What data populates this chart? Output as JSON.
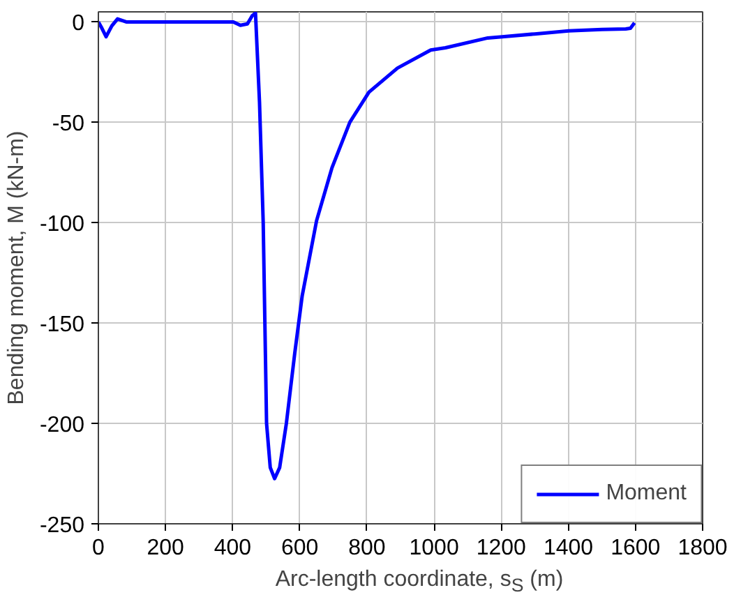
{
  "chart_data": {
    "type": "line",
    "xlabel": "Arc-length coordinate, s$_{S}$ (m)",
    "ylabel": "Bending moment, M (kN-m)",
    "xlim": [
      0,
      1800
    ],
    "xticks": [
      0,
      200,
      400,
      600,
      800,
      1000,
      1200,
      1400,
      1600,
      1800
    ],
    "ylim": [
      -250,
      5
    ],
    "yticks": [
      -250,
      -200,
      -150,
      -100,
      -50,
      0
    ],
    "grid": true,
    "legend": "bottom right",
    "marker": "none",
    "line_style": "solid",
    "series": [
      {
        "name": "Moment",
        "color": "#0000ff",
        "x": [
          0,
          10,
          23,
          40,
          57,
          83,
          200,
          300,
          402,
          423,
          444,
          458,
          468,
          480,
          491,
          501,
          512,
          525,
          540,
          560,
          585,
          607,
          650,
          696,
          749,
          806,
          891,
          990,
          1034,
          1160,
          1203,
          1300,
          1401,
          1500,
          1571,
          1585,
          1597
        ],
        "values": [
          0,
          -3,
          -7.4,
          -2,
          1.5,
          0,
          0,
          0,
          0,
          -1.7,
          -1,
          3,
          4.4,
          -40,
          -100,
          -200,
          -222,
          -227.5,
          -222,
          -200,
          -165,
          -136.6,
          -99,
          -72.6,
          -50,
          -35,
          -23,
          -14,
          -12.9,
          -8,
          -7.4,
          -6,
          -4.5,
          -3.8,
          -3.5,
          -3.2,
          -0.5
        ]
      }
    ]
  }
}
